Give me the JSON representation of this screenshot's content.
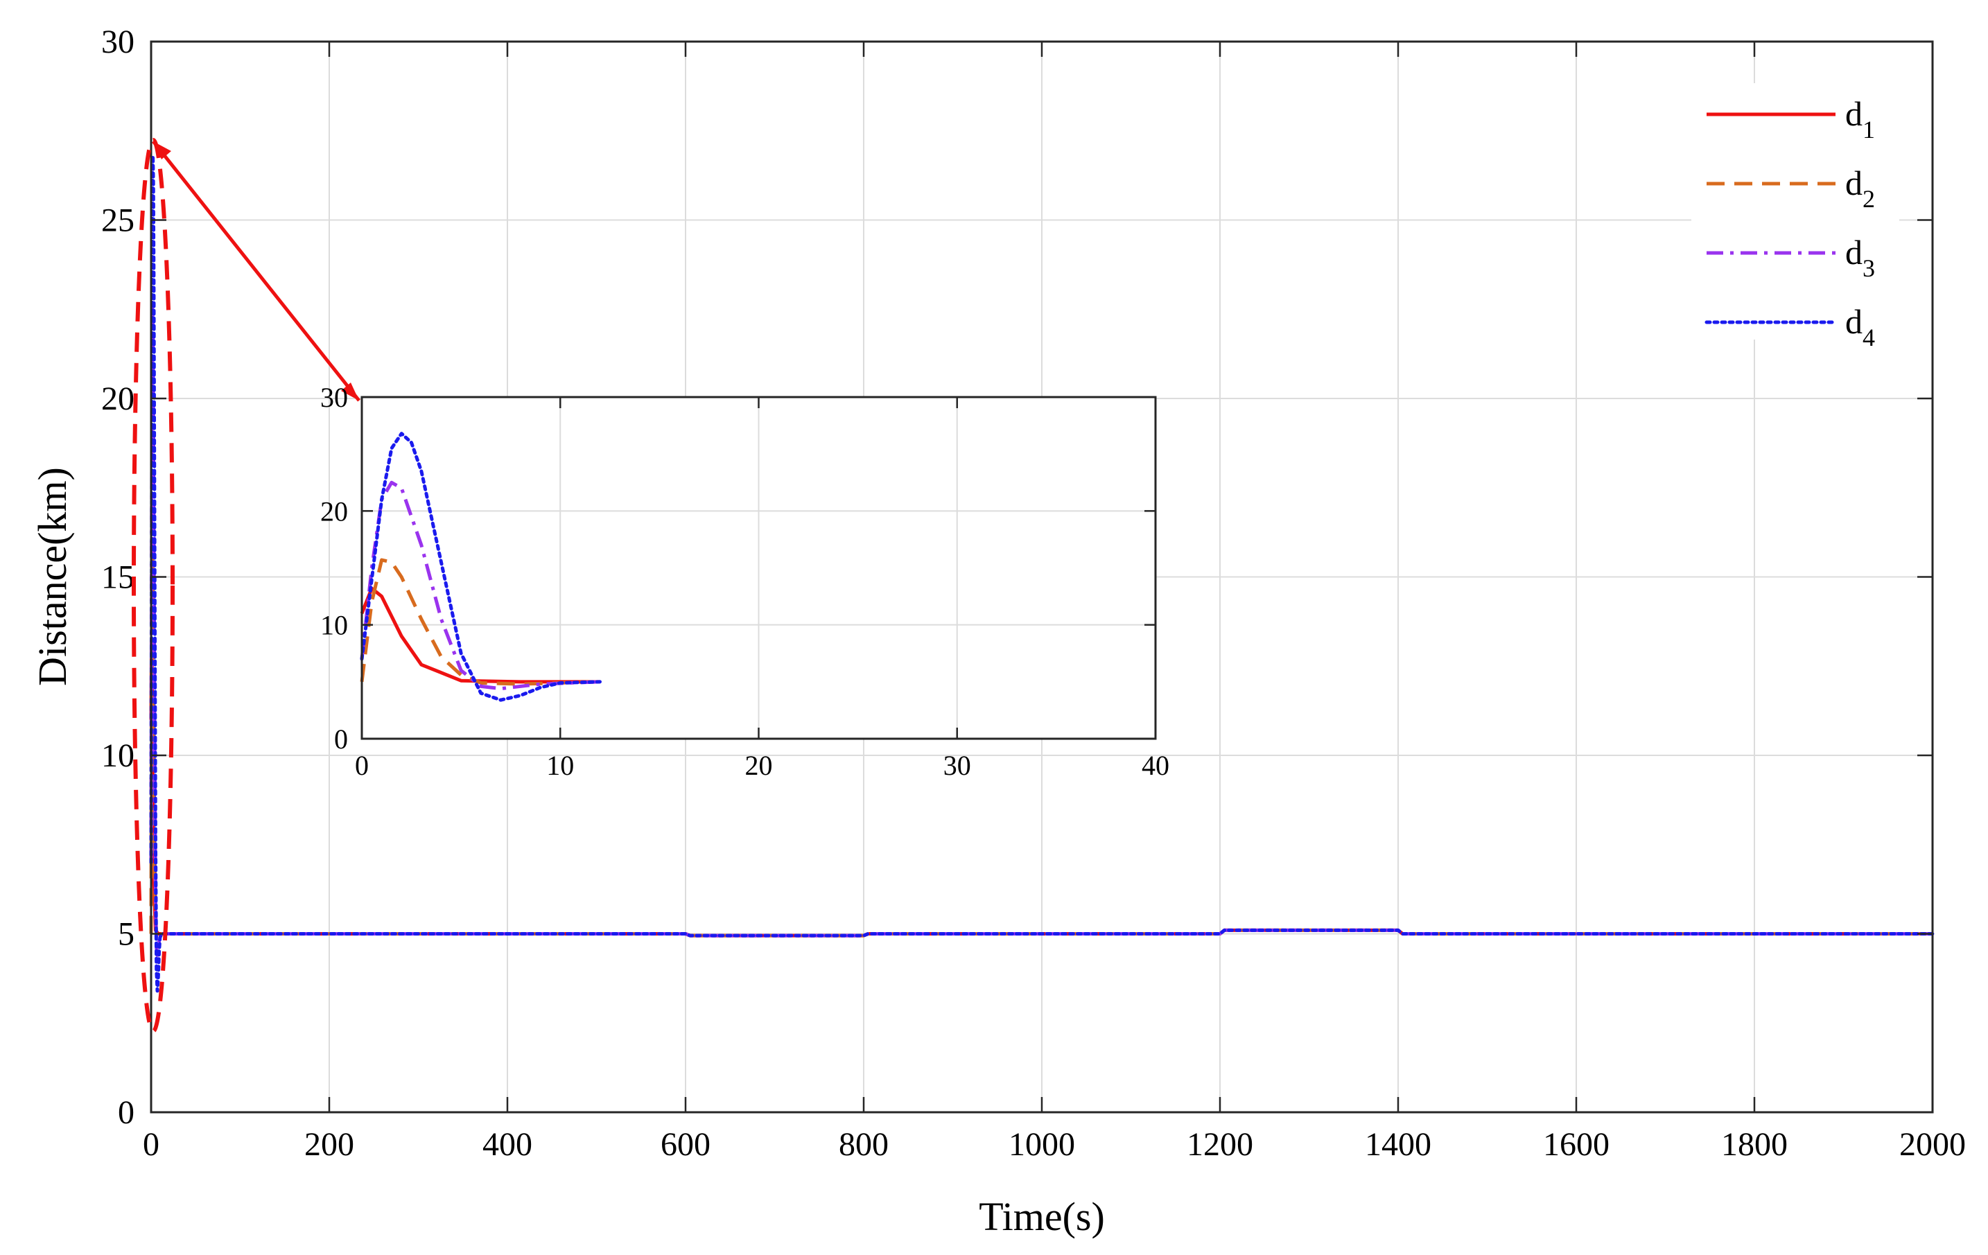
{
  "chart_data": [
    {
      "id": "main",
      "type": "line",
      "title": "",
      "xlabel": "Time(s)",
      "ylabel": "Distance(km)",
      "xlim": [
        0,
        2000
      ],
      "ylim": [
        0,
        30
      ],
      "xticks": [
        0,
        200,
        400,
        600,
        800,
        1000,
        1200,
        1400,
        1600,
        1800,
        2000
      ],
      "yticks": [
        0,
        5,
        10,
        15,
        20,
        25,
        30
      ],
      "grid": true,
      "legend_position": "top-right",
      "legend": [
        {
          "base": "d",
          "sub": "1"
        },
        {
          "base": "d",
          "sub": "2"
        },
        {
          "base": "d",
          "sub": "3"
        },
        {
          "base": "d",
          "sub": "4"
        }
      ],
      "series": [
        {
          "name": "d1",
          "color": "#ee1111",
          "style": "solid",
          "x": [
            0,
            0.5,
            1,
            2,
            3,
            5,
            8,
            12,
            600,
            605,
            800,
            805,
            1200,
            1205,
            1400,
            1405,
            2000
          ],
          "y": [
            11,
            13.2,
            12.5,
            9,
            6.5,
            5.1,
            5.0,
            5.0,
            5.0,
            4.95,
            4.95,
            5.0,
            5.0,
            5.1,
            5.1,
            5.0,
            5.0
          ]
        },
        {
          "name": "d2",
          "color": "#d86b1e",
          "style": "dashed",
          "x": [
            0,
            0.5,
            1,
            1.5,
            2,
            3,
            4,
            5,
            6,
            8,
            12,
            600,
            605,
            800,
            805,
            1200,
            1205,
            1400,
            1405,
            2000
          ],
          "y": [
            5,
            12,
            15.7,
            15.5,
            14.2,
            10.5,
            7.2,
            5.6,
            4.9,
            4.8,
            5.0,
            5.0,
            4.95,
            4.95,
            5.0,
            5.0,
            5.1,
            5.1,
            5.0,
            5.0
          ]
        },
        {
          "name": "d3",
          "color": "#9a33ee",
          "style": "dashdot",
          "x": [
            0,
            0.5,
            1,
            1.5,
            2,
            3,
            4,
            5,
            6,
            7,
            9,
            12,
            600,
            605,
            800,
            805,
            1200,
            1205,
            1400,
            1405,
            2000
          ],
          "y": [
            7,
            15,
            21,
            22.5,
            22,
            17,
            10.5,
            6,
            4.6,
            4.4,
            4.8,
            5.0,
            5.0,
            4.95,
            4.95,
            5.0,
            5.0,
            5.1,
            5.1,
            5.0,
            5.0
          ]
        },
        {
          "name": "d4",
          "color": "#1a1aee",
          "style": "dotted",
          "x": [
            0,
            0.5,
            1,
            1.5,
            2,
            2.5,
            3,
            4,
            5,
            6,
            7,
            8,
            9,
            10,
            12,
            600,
            605,
            800,
            805,
            1200,
            1205,
            1400,
            1405,
            2000
          ],
          "y": [
            7,
            14,
            21,
            25.5,
            26.8,
            26,
            23.5,
            15.5,
            7.5,
            4.0,
            3.4,
            3.8,
            4.5,
            4.9,
            5.0,
            5.0,
            4.95,
            4.95,
            5.0,
            5.0,
            5.1,
            5.1,
            5.0,
            5.0
          ]
        }
      ]
    },
    {
      "id": "inset",
      "type": "line",
      "title": "",
      "xlabel": "",
      "ylabel": "",
      "xlim": [
        0,
        40
      ],
      "ylim": [
        0,
        30
      ],
      "xticks": [
        0,
        10,
        20,
        30,
        40
      ],
      "yticks": [
        0,
        10,
        20,
        30
      ],
      "grid": true,
      "note_series": "zoomed view of the main series over the first 40 s"
    }
  ],
  "annotations": {
    "zoom_ellipse_color": "#ee1111",
    "arrow_color": "#ee1111"
  }
}
